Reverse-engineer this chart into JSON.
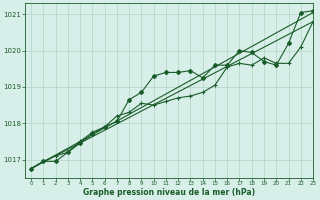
{
  "bg_color": "#d8eee8",
  "grid_color": "#b0d4c8",
  "line_color": "#1a5c2a",
  "xlabel": "Graphe pression niveau de la mer (hPa)",
  "xlim": [
    -0.5,
    23
  ],
  "ylim": [
    1016.5,
    1021.3
  ],
  "yticks": [
    1017,
    1018,
    1019,
    1020,
    1021
  ],
  "xticks": [
    0,
    1,
    2,
    3,
    4,
    5,
    6,
    7,
    8,
    9,
    10,
    11,
    12,
    13,
    14,
    15,
    16,
    17,
    18,
    19,
    20,
    21,
    22,
    23
  ],
  "series1_x": [
    0,
    1,
    2,
    3,
    4,
    5,
    6,
    7,
    8,
    9,
    10,
    11,
    12,
    13,
    14,
    15,
    16,
    17,
    18,
    19,
    20,
    21,
    22,
    23
  ],
  "series1_y": [
    1016.75,
    1016.95,
    1016.95,
    1017.2,
    1017.45,
    1017.7,
    1017.9,
    1018.05,
    1018.65,
    1018.85,
    1019.3,
    1019.4,
    1019.4,
    1019.45,
    1019.25,
    1019.6,
    1019.6,
    1020.0,
    1019.95,
    1019.7,
    1019.6,
    1020.2,
    1021.05,
    1021.1
  ],
  "series2_x": [
    0,
    1,
    2,
    3,
    4,
    5,
    6,
    7,
    8,
    9,
    10,
    11,
    12,
    13,
    14,
    15,
    16,
    17,
    18,
    19,
    20,
    21,
    22,
    23
  ],
  "series2_y": [
    1016.75,
    1016.95,
    1017.1,
    1017.2,
    1017.5,
    1017.75,
    1017.9,
    1018.2,
    1018.3,
    1018.55,
    1018.5,
    1018.6,
    1018.7,
    1018.75,
    1018.85,
    1019.05,
    1019.55,
    1019.65,
    1019.6,
    1019.8,
    1019.65,
    1019.65,
    1020.1,
    1020.8
  ],
  "series3_x": [
    0,
    23
  ],
  "series3_y": [
    1016.75,
    1021.05
  ],
  "series4_x": [
    0,
    23
  ],
  "series4_y": [
    1016.75,
    1020.8
  ]
}
